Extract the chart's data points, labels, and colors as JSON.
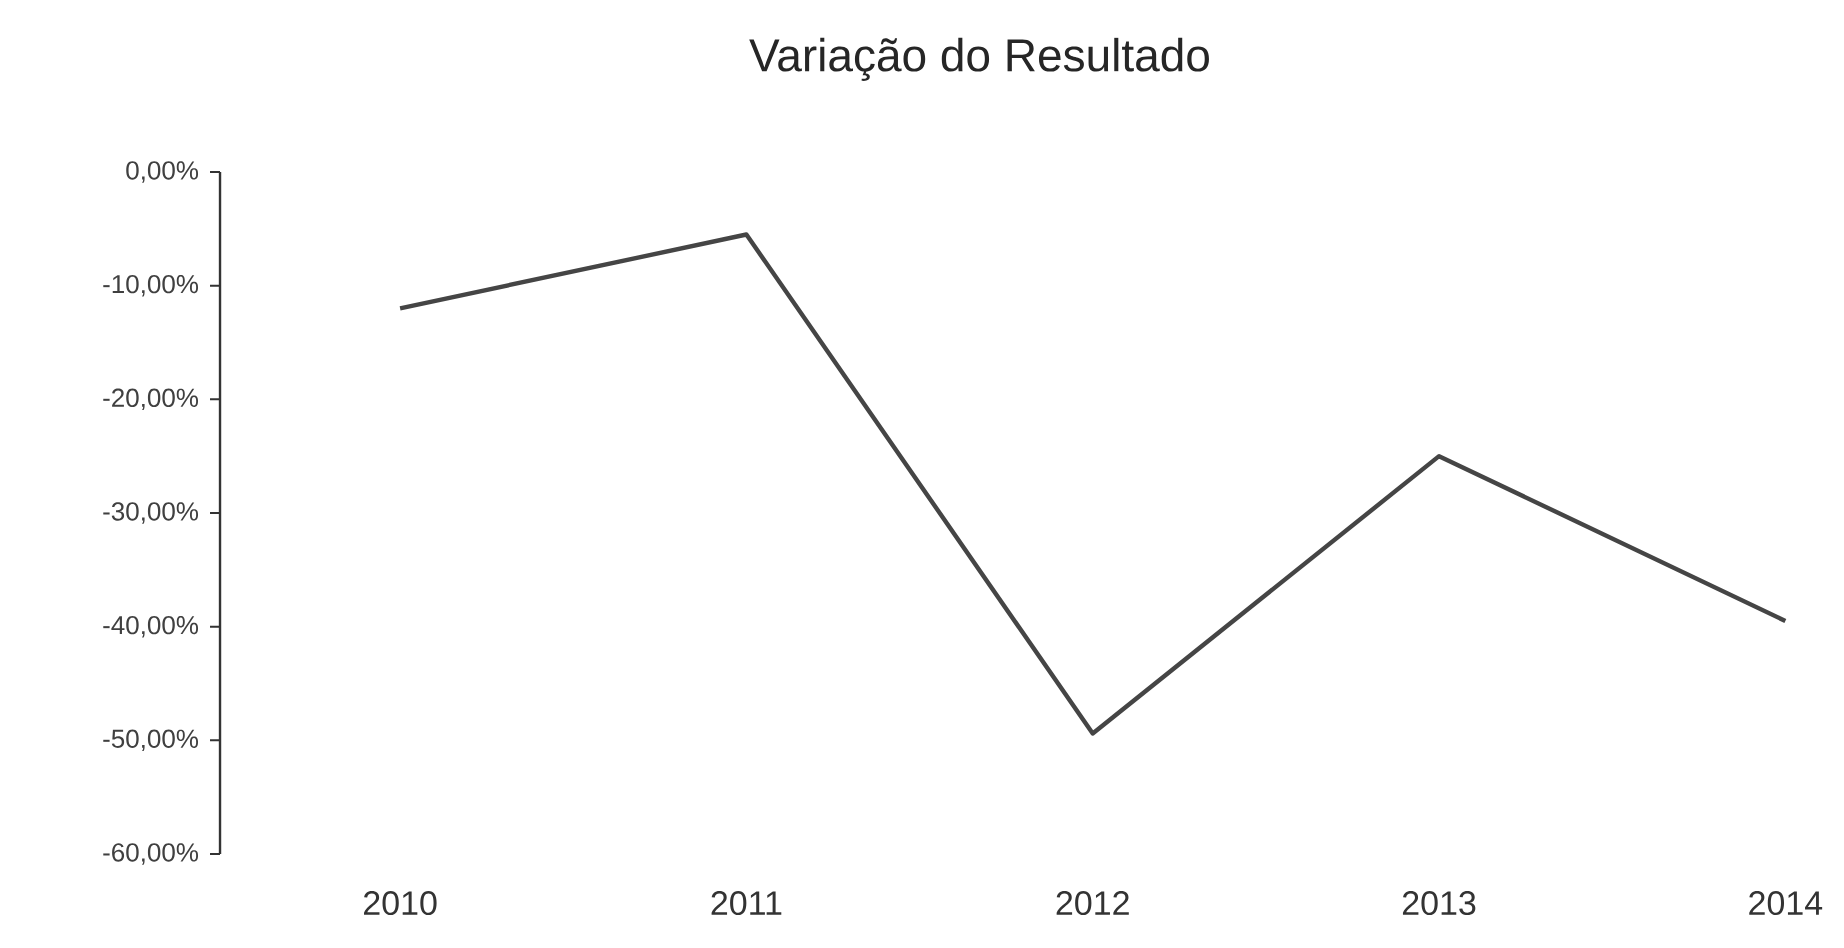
{
  "chart_data": {
    "type": "line",
    "title": "Variação do Resultado",
    "categories": [
      "2010",
      "2011",
      "2012",
      "2013",
      "2014"
    ],
    "series": [
      {
        "color": "#454545",
        "values": [
          -12,
          -5.5,
          -49.4,
          -25,
          -39.5
        ]
      }
    ],
    "marker": "none",
    "ylim": [
      -60,
      0
    ],
    "yticks": [
      {
        "value": 0,
        "label": "0,00%"
      },
      {
        "value": -10,
        "label": "-10,00%"
      },
      {
        "value": -20,
        "label": "-20,00%"
      },
      {
        "value": -30,
        "label": "-30,00%"
      },
      {
        "value": -40,
        "label": "-40,00%"
      },
      {
        "value": -50,
        "label": "-50,00%"
      },
      {
        "value": -60,
        "label": "-60,00%"
      }
    ]
  }
}
